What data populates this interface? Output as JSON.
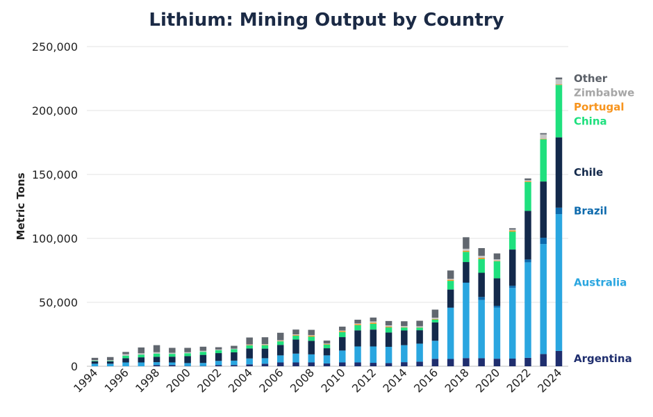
{
  "chart_data": {
    "type": "bar",
    "stacked": true,
    "title": "Lithium: Mining Output by Country",
    "xlabel": "",
    "ylabel": "Metric Tons",
    "ylim": [
      0,
      250000
    ],
    "yticks": [
      0,
      50000,
      100000,
      150000,
      200000,
      250000
    ],
    "ytick_labels": [
      "0",
      "50,000",
      "100,000",
      "150,000",
      "200,000",
      "250,000"
    ],
    "grid": true,
    "legend_placement": "right, labels aligned to last bar",
    "categories": [
      "1994",
      "1995",
      "1996",
      "1997",
      "1998",
      "1999",
      "2000",
      "2001",
      "2002",
      "2003",
      "2004",
      "2005",
      "2006",
      "2007",
      "2008",
      "2009",
      "2010",
      "2011",
      "2012",
      "2013",
      "2014",
      "2015",
      "2016",
      "2017",
      "2018",
      "2019",
      "2020",
      "2021",
      "2022",
      "2023",
      "2024"
    ],
    "xtick_labels": [
      "1994",
      "1996",
      "1998",
      "2000",
      "2002",
      "2004",
      "2006",
      "2008",
      "2010",
      "2012",
      "2014",
      "2016",
      "2018",
      "2020",
      "2022",
      "2024"
    ],
    "series": [
      {
        "name": "Argentina",
        "color": "#1f2e6e",
        "values": [
          0,
          0,
          0,
          0,
          1000,
          1000,
          200,
          200,
          1000,
          1000,
          1500,
          2000,
          3000,
          3000,
          3000,
          2200,
          3000,
          3000,
          2700,
          2500,
          3200,
          3600,
          5800,
          5700,
          6400,
          6300,
          5900,
          5970,
          6590,
          9600,
          12000
        ]
      },
      {
        "name": "Australia",
        "color": "#2aa6e0",
        "values": [
          2000,
          2000,
          3000,
          3000,
          2200,
          2000,
          2300,
          2400,
          3200,
          3400,
          4600,
          4300,
          5500,
          6900,
          6300,
          6300,
          9300,
          12500,
          12800,
          12700,
          13300,
          14100,
          14000,
          40000,
          58800,
          45500,
          40000,
          55300,
          74700,
          86000,
          107000
        ]
      },
      {
        "name": "Brazil",
        "color": "#0d6aad",
        "values": [
          0,
          0,
          0,
          0,
          0,
          0,
          0,
          0,
          0,
          0,
          0,
          0,
          0,
          0,
          0,
          0,
          0,
          0,
          0,
          0,
          0,
          0,
          200,
          200,
          300,
          2400,
          1400,
          1700,
          2200,
          4900,
          5000
        ]
      },
      {
        "name": "Chile",
        "color": "#13294b",
        "values": [
          1900,
          1800,
          3300,
          4000,
          4200,
          4500,
          5400,
          6300,
          6100,
          6500,
          7800,
          7500,
          8200,
          11000,
          10600,
          5600,
          10500,
          12600,
          13200,
          11200,
          11500,
          10500,
          14300,
          14100,
          16000,
          18900,
          21500,
          28300,
          38000,
          44000,
          55000
        ]
      },
      {
        "name": "China",
        "color": "#1fe07e",
        "values": [
          400,
          400,
          2000,
          2100,
          2500,
          2200,
          2300,
          2400,
          2300,
          2400,
          2400,
          2700,
          2800,
          3000,
          3300,
          2900,
          3900,
          4100,
          4500,
          4000,
          2300,
          2000,
          2300,
          6800,
          8000,
          10800,
          13300,
          14000,
          22600,
          33000,
          41000
        ]
      },
      {
        "name": "Portugal",
        "color": "#f7941d",
        "values": [
          0,
          0,
          0,
          0,
          0,
          0,
          0,
          0,
          0,
          0,
          300,
          300,
          300,
          500,
          700,
          400,
          800,
          800,
          800,
          600,
          300,
          200,
          400,
          800,
          800,
          900,
          348,
          900,
          600,
          400,
          380
        ]
      },
      {
        "name": "Zimbabwe",
        "color": "#c5c5c5",
        "values": [
          500,
          500,
          1200,
          1100,
          1100,
          900,
          800,
          800,
          500,
          500,
          500,
          500,
          600,
          600,
          500,
          400,
          500,
          500,
          1100,
          1000,
          900,
          900,
          1000,
          800,
          1600,
          1600,
          1200,
          710,
          800,
          3400,
          4000
        ]
      },
      {
        "name": "Other",
        "color": "#61676f",
        "values": [
          1800,
          2500,
          1700,
          4500,
          5500,
          3800,
          3400,
          3200,
          1800,
          2200,
          5400,
          5400,
          5800,
          3700,
          4100,
          2300,
          3000,
          2900,
          3000,
          3400,
          3700,
          4300,
          6300,
          6500,
          9000,
          6000,
          4600,
          1080,
          1410,
          1000,
          1400
        ]
      }
    ]
  }
}
